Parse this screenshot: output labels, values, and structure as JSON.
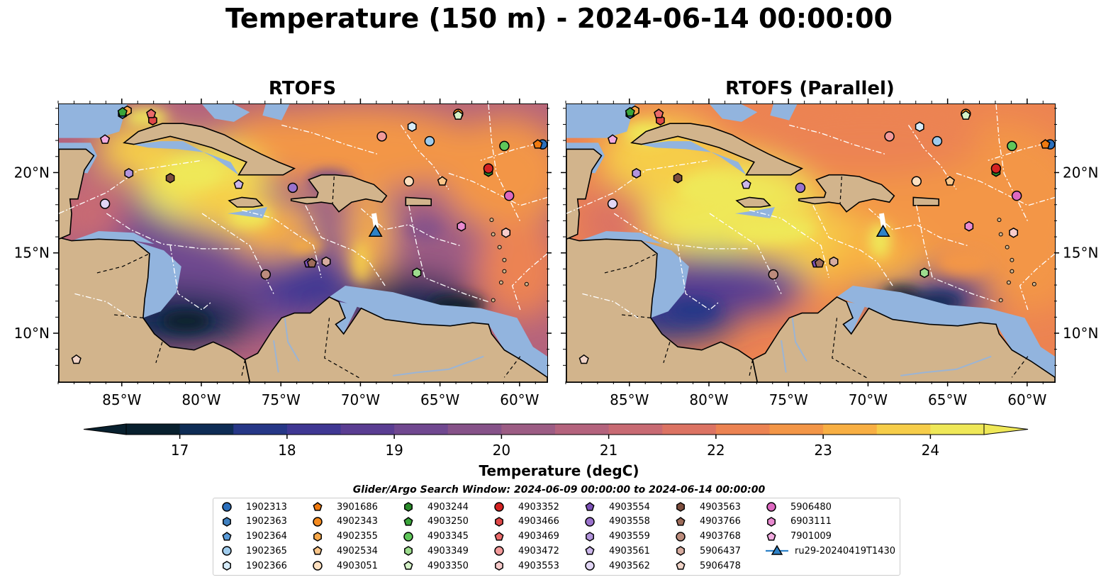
{
  "title": "Temperature (150 m) - 2024-06-14 00:00:00",
  "panels": [
    {
      "title": "RTOFS"
    },
    {
      "title": "RTOFS (Parallel)"
    }
  ],
  "axes": {
    "lon_ticks": [
      "85°W",
      "80°W",
      "75°W",
      "70°W",
      "65°W",
      "60°W"
    ],
    "lat_ticks": [
      "20°N",
      "15°N",
      "10°N"
    ],
    "lon_values": [
      -85,
      -80,
      -75,
      -70,
      -65,
      -60
    ],
    "lat_values": [
      20,
      15,
      10
    ],
    "lon_range": [
      -89,
      -58.3
    ],
    "lat_range": [
      7,
      24.3
    ]
  },
  "colorbar": {
    "label": "Temperature (degC)",
    "ticks": [
      "17",
      "18",
      "19",
      "20",
      "21",
      "22",
      "23",
      "24"
    ],
    "min": 16.5,
    "max": 24.5,
    "extend": "both",
    "colors": [
      "#08202e",
      "#0e2c55",
      "#263787",
      "#3f3793",
      "#5a3d92",
      "#704890",
      "#865289",
      "#9c5c84",
      "#b4637d",
      "#c86a73",
      "#dc7363",
      "#ec8352",
      "#f39647",
      "#f8af43",
      "#f6cd49",
      "#efe858"
    ]
  },
  "search_window": "Glider/Argo Search Window: 2024-06-09 00:00:00 to 2024-06-14 00:00:00",
  "legend": [
    {
      "label": "1902313",
      "color": "#2b6fbc",
      "shape": "circle"
    },
    {
      "label": "1902363",
      "color": "#3f80c0",
      "shape": "hexagon"
    },
    {
      "label": "1902364",
      "color": "#5a9bd8",
      "shape": "pentagon"
    },
    {
      "label": "1902365",
      "color": "#9fcbec",
      "shape": "circle"
    },
    {
      "label": "1902366",
      "color": "#d6ebf8",
      "shape": "hexagon"
    },
    {
      "label": "3901686",
      "color": "#f07a10",
      "shape": "pentagon"
    },
    {
      "label": "4902343",
      "color": "#f58b1f",
      "shape": "circle"
    },
    {
      "label": "4902355",
      "color": "#f7a84a",
      "shape": "hexagon"
    },
    {
      "label": "4902534",
      "color": "#fbc68a",
      "shape": "pentagon"
    },
    {
      "label": "4903051",
      "color": "#fde0c0",
      "shape": "circle"
    },
    {
      "label": "4903244",
      "color": "#2a8a2a",
      "shape": "hexagon"
    },
    {
      "label": "4903250",
      "color": "#3aa53a",
      "shape": "pentagon"
    },
    {
      "label": "4903345",
      "color": "#5fc65a",
      "shape": "circle"
    },
    {
      "label": "4903349",
      "color": "#9edd8e",
      "shape": "hexagon"
    },
    {
      "label": "4903350",
      "color": "#d5f2c8",
      "shape": "pentagon"
    },
    {
      "label": "4903352",
      "color": "#d42222",
      "shape": "circle"
    },
    {
      "label": "4903466",
      "color": "#e04848",
      "shape": "hexagon"
    },
    {
      "label": "4903469",
      "color": "#ea6a6a",
      "shape": "pentagon"
    },
    {
      "label": "4903472",
      "color": "#f29a9a",
      "shape": "circle"
    },
    {
      "label": "4903553",
      "color": "#f8cccc",
      "shape": "hexagon"
    },
    {
      "label": "4903554",
      "color": "#7d52b8",
      "shape": "pentagon"
    },
    {
      "label": "4903558",
      "color": "#9a72cc",
      "shape": "circle"
    },
    {
      "label": "4903559",
      "color": "#b294dc",
      "shape": "hexagon"
    },
    {
      "label": "4903561",
      "color": "#cbb6ea",
      "shape": "pentagon"
    },
    {
      "label": "4903562",
      "color": "#e2d6f5",
      "shape": "circle"
    },
    {
      "label": "4903563",
      "color": "#7d4e3e",
      "shape": "hexagon"
    },
    {
      "label": "4903766",
      "color": "#9e6c5a",
      "shape": "pentagon"
    },
    {
      "label": "4903768",
      "color": "#bc8c7c",
      "shape": "circle"
    },
    {
      "label": "5906437",
      "color": "#d7aca0",
      "shape": "hexagon"
    },
    {
      "label": "5906478",
      "color": "#f1d4c8",
      "shape": "pentagon"
    },
    {
      "label": "5906480",
      "color": "#dd68c0",
      "shape": "circle"
    },
    {
      "label": "6903111",
      "color": "#e88ad0",
      "shape": "hexagon"
    },
    {
      "label": "7901009",
      "color": "#f1aadf",
      "shape": "pentagon"
    },
    {
      "label": "ru29-20240419T1430",
      "color": "#2e82c8",
      "shape": "triangle"
    }
  ],
  "glider": {
    "lon": -69.1,
    "lat": 16.3,
    "track": [
      [
        -69.2,
        17.5
      ],
      [
        -69.05,
        16.6
      ]
    ]
  },
  "floats": [
    {
      "id": "1902313",
      "lon": -58.6,
      "lat": 21.8
    },
    {
      "id": "1902363",
      "lon": -85.0,
      "lat": 23.7
    },
    {
      "id": "1902364",
      "lon": -63.9,
      "lat": 23.7
    },
    {
      "id": "1902365",
      "lon": -65.7,
      "lat": 22.0
    },
    {
      "id": "1902366",
      "lon": -66.8,
      "lat": 22.9
    },
    {
      "id": "3901686",
      "lon": -58.9,
      "lat": 21.8
    },
    {
      "id": "4902343",
      "lon": -63.9,
      "lat": 23.7
    },
    {
      "id": "4902355",
      "lon": -84.7,
      "lat": 23.9
    },
    {
      "id": "4902534",
      "lon": -64.9,
      "lat": 19.5
    },
    {
      "id": "4903051",
      "lon": -67.0,
      "lat": 19.5
    },
    {
      "id": "4903244",
      "lon": -62.0,
      "lat": 20.1
    },
    {
      "id": "4903250",
      "lon": -85.0,
      "lat": 23.8
    },
    {
      "id": "4903345",
      "lon": -61.0,
      "lat": 21.7
    },
    {
      "id": "4903349",
      "lon": -66.5,
      "lat": 13.8
    },
    {
      "id": "4903350",
      "lon": -63.9,
      "lat": 23.6
    },
    {
      "id": "4903352",
      "lon": -62.0,
      "lat": 20.3
    },
    {
      "id": "4903466",
      "lon": -83.1,
      "lat": 23.3
    },
    {
      "id": "4903469",
      "lon": -83.2,
      "lat": 23.7
    },
    {
      "id": "4903472",
      "lon": -68.7,
      "lat": 22.3
    },
    {
      "id": "4903553",
      "lon": -60.9,
      "lat": 16.3
    },
    {
      "id": "4903554",
      "lon": -73.3,
      "lat": 14.4
    },
    {
      "id": "4903558",
      "lon": -74.3,
      "lat": 19.1
    },
    {
      "id": "4903559",
      "lon": -84.6,
      "lat": 20.0
    },
    {
      "id": "4903561",
      "lon": -77.7,
      "lat": 19.3
    },
    {
      "id": "4903562",
      "lon": -86.1,
      "lat": 18.1
    },
    {
      "id": "4903563",
      "lon": -82.0,
      "lat": 19.7
    },
    {
      "id": "4903766",
      "lon": -73.1,
      "lat": 14.4
    },
    {
      "id": "4903768",
      "lon": -76.0,
      "lat": 13.7
    },
    {
      "id": "5906437",
      "lon": -72.2,
      "lat": 14.5
    },
    {
      "id": "5906478",
      "lon": -87.9,
      "lat": 8.4
    },
    {
      "id": "5906480",
      "lon": -60.7,
      "lat": 18.6
    },
    {
      "id": "6903111",
      "lon": -63.7,
      "lat": 16.7
    },
    {
      "id": "7901009",
      "lon": -86.1,
      "lat": 22.1
    }
  ]
}
